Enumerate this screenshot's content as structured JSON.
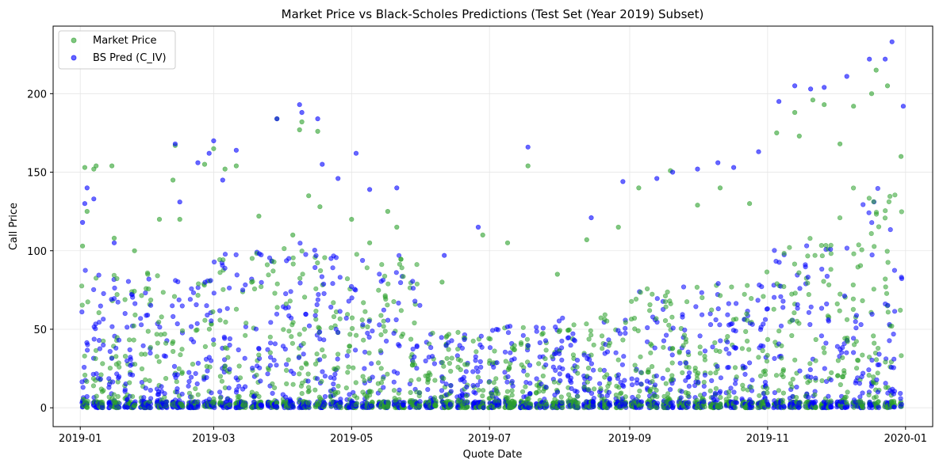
{
  "chart_data": {
    "type": "scatter",
    "title": "Market Price vs Black-Scholes Predictions (Test Set (Year 2019) Subset)",
    "xlabel": "Quote Date",
    "ylabel": "Call Price",
    "x_ticks": [
      "2019-01",
      "2019-03",
      "2019-05",
      "2019-07",
      "2019-09",
      "2019-11",
      "2020-01"
    ],
    "y_ticks": [
      0,
      50,
      100,
      150,
      200
    ],
    "xlim": [
      "2018-12-20",
      "2020-01-13"
    ],
    "ylim": [
      -12,
      243
    ],
    "grid": true,
    "legend_position": "top-left",
    "series": [
      {
        "name": "Market Price",
        "color": "#2ca02c",
        "points": [
          [
            "2019-01-02",
            103
          ],
          [
            "2019-01-03",
            153
          ],
          [
            "2019-01-04",
            125
          ],
          [
            "2019-01-07",
            152
          ],
          [
            "2019-01-08",
            154
          ],
          [
            "2019-01-15",
            154
          ],
          [
            "2019-01-16",
            108
          ],
          [
            "2019-01-25",
            100
          ],
          [
            "2019-02-05",
            120
          ],
          [
            "2019-02-11",
            145
          ],
          [
            "2019-02-12",
            167
          ],
          [
            "2019-02-14",
            120
          ],
          [
            "2019-02-25",
            155
          ],
          [
            "2019-03-01",
            165
          ],
          [
            "2019-03-06",
            152
          ],
          [
            "2019-03-11",
            154
          ],
          [
            "2019-03-21",
            122
          ],
          [
            "2019-03-29",
            184
          ],
          [
            "2019-04-05",
            110
          ],
          [
            "2019-04-08",
            177
          ],
          [
            "2019-04-09",
            182
          ],
          [
            "2019-04-12",
            135
          ],
          [
            "2019-04-16",
            176
          ],
          [
            "2019-04-17",
            128
          ],
          [
            "2019-05-01",
            120
          ],
          [
            "2019-05-09",
            105
          ],
          [
            "2019-05-17",
            125
          ],
          [
            "2019-05-21",
            115
          ],
          [
            "2019-06-10",
            80
          ],
          [
            "2019-06-28",
            110
          ],
          [
            "2019-07-09",
            105
          ],
          [
            "2019-07-18",
            154
          ],
          [
            "2019-07-31",
            85
          ],
          [
            "2019-08-13",
            107
          ],
          [
            "2019-08-27",
            115
          ],
          [
            "2019-09-05",
            140
          ],
          [
            "2019-09-19",
            151
          ],
          [
            "2019-10-01",
            129
          ],
          [
            "2019-10-11",
            140
          ],
          [
            "2019-10-24",
            130
          ],
          [
            "2019-11-05",
            175
          ],
          [
            "2019-11-13",
            188
          ],
          [
            "2019-11-15",
            173
          ],
          [
            "2019-11-21",
            196
          ],
          [
            "2019-11-26",
            193
          ],
          [
            "2019-12-03",
            168
          ],
          [
            "2019-12-09",
            192
          ],
          [
            "2019-12-17",
            200
          ],
          [
            "2019-12-19",
            215
          ],
          [
            "2019-12-24",
            205
          ],
          [
            "2019-12-30",
            160
          ]
        ]
      },
      {
        "name": "BS Pred (C_IV)",
        "color": "#0000ff",
        "points": [
          [
            "2019-01-02",
            118
          ],
          [
            "2019-01-03",
            130
          ],
          [
            "2019-01-04",
            140
          ],
          [
            "2019-01-07",
            133
          ],
          [
            "2019-01-16",
            105
          ],
          [
            "2019-02-12",
            168
          ],
          [
            "2019-02-14",
            131
          ],
          [
            "2019-02-22",
            156
          ],
          [
            "2019-02-27",
            162
          ],
          [
            "2019-03-01",
            170
          ],
          [
            "2019-03-05",
            145
          ],
          [
            "2019-03-11",
            164
          ],
          [
            "2019-03-29",
            184
          ],
          [
            "2019-04-08",
            193
          ],
          [
            "2019-04-09",
            188
          ],
          [
            "2019-04-16",
            184
          ],
          [
            "2019-04-18",
            155
          ],
          [
            "2019-04-25",
            146
          ],
          [
            "2019-05-03",
            162
          ],
          [
            "2019-05-09",
            139
          ],
          [
            "2019-05-21",
            140
          ],
          [
            "2019-06-11",
            97
          ],
          [
            "2019-06-26",
            115
          ],
          [
            "2019-07-18",
            166
          ],
          [
            "2019-08-15",
            121
          ],
          [
            "2019-08-29",
            144
          ],
          [
            "2019-09-13",
            146
          ],
          [
            "2019-09-20",
            150
          ],
          [
            "2019-10-01",
            152
          ],
          [
            "2019-10-10",
            156
          ],
          [
            "2019-10-17",
            153
          ],
          [
            "2019-10-28",
            163
          ],
          [
            "2019-11-06",
            195
          ],
          [
            "2019-11-13",
            205
          ],
          [
            "2019-11-20",
            203
          ],
          [
            "2019-11-26",
            204
          ],
          [
            "2019-12-06",
            211
          ],
          [
            "2019-12-16",
            222
          ],
          [
            "2019-12-23",
            222
          ],
          [
            "2019-12-26",
            233
          ],
          [
            "2019-12-31",
            192
          ]
        ]
      }
    ]
  }
}
